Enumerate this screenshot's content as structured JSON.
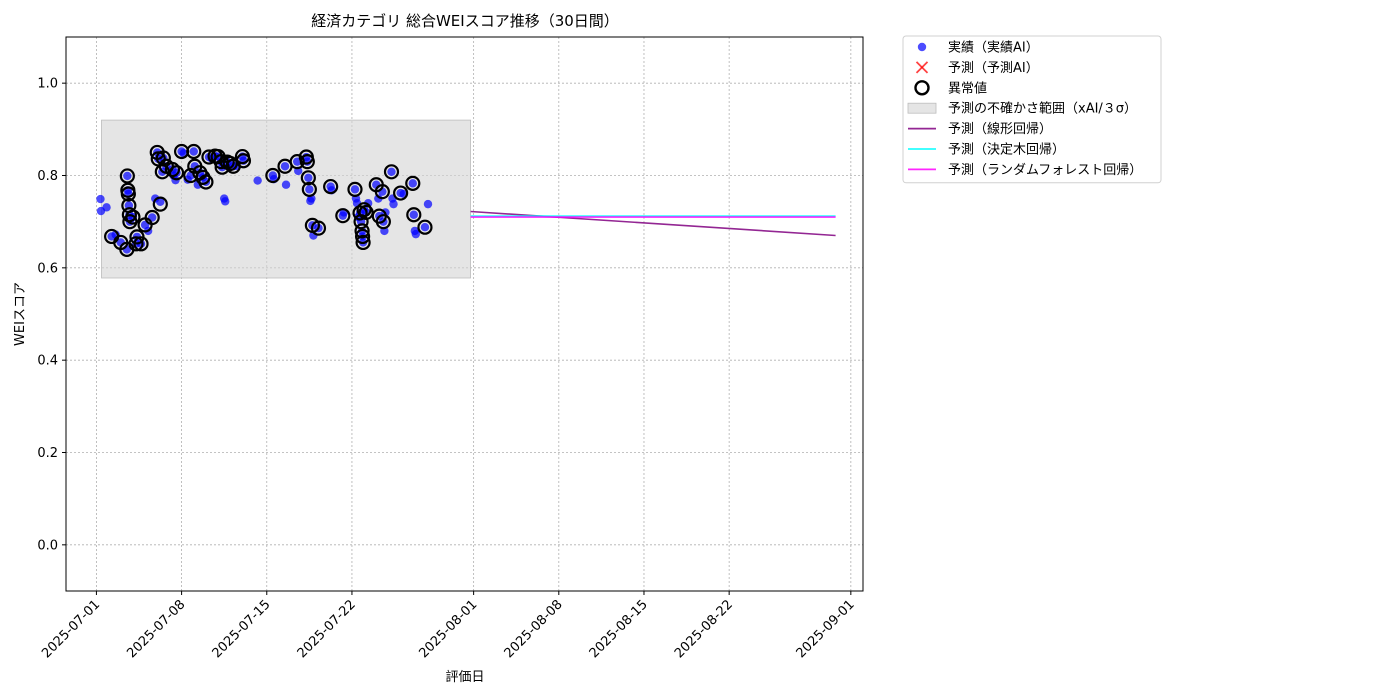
{
  "chart_data": {
    "type": "scatter",
    "title": "経済カテゴリ 総合WEIスコア推移（30日間）",
    "xlabel": "評価日",
    "ylabel": "WEIスコア",
    "xlim": [
      "2025-06-28T12:00",
      "2025-09-02"
    ],
    "ylim": [
      -0.1,
      1.1
    ],
    "x_ticks": [
      "2025-07-01",
      "2025-07-08",
      "2025-07-15",
      "2025-07-22",
      "2025-08-01",
      "2025-08-08",
      "2025-08-15",
      "2025-08-22",
      "2025-09-01"
    ],
    "y_ticks": [
      0.0,
      0.2,
      0.4,
      0.6,
      0.8,
      1.0
    ],
    "y_tick_labels": [
      "0.0",
      "0.2",
      "0.4",
      "0.6",
      "0.8",
      "1.0"
    ],
    "grid": true,
    "legend_position": "outside right, top",
    "colors": {
      "actual": "#0000ff",
      "predicted": "#ff0000",
      "anomaly": "#000000",
      "band": "#d3d3d3",
      "linear": "#800080",
      "tree": "#00ffff",
      "forest": "#ff00ff"
    },
    "legend": [
      {
        "label": "実績（実績AI）",
        "kind": "dot",
        "color": "#0000ff"
      },
      {
        "label": "予測（予測AI）",
        "kind": "cross",
        "color": "#ff0000"
      },
      {
        "label": "異常値",
        "kind": "ring",
        "color": "#000000"
      },
      {
        "label": "予測の不確かさ範囲（xAI/３σ）",
        "kind": "patch",
        "color": "#d3d3d3"
      },
      {
        "label": "予測（線形回帰）",
        "kind": "line",
        "color": "#800080"
      },
      {
        "label": "予測（決定木回帰）",
        "kind": "line",
        "color": "#00ffff"
      },
      {
        "label": "予測（ランダムフォレスト回帰）",
        "kind": "line",
        "color": "#ff00ff"
      }
    ],
    "uncertainty_band": {
      "x": [
        "2025-07-01T10:00",
        "2025-07-31T18:00"
      ],
      "y": [
        0.578,
        0.92
      ]
    },
    "series": [
      {
        "name": "実績（実績AI）",
        "points": [
          [
            "2025-07-01T08:00",
            0.749
          ],
          [
            "2025-07-01T09:00",
            0.723
          ],
          [
            "2025-07-01T20:00",
            0.731
          ],
          [
            "2025-07-02T06:00",
            0.668
          ],
          [
            "2025-07-02T14:00",
            0.672
          ],
          [
            "2025-07-03T00:00",
            0.655
          ],
          [
            "2025-07-03T12:00",
            0.64
          ],
          [
            "2025-07-03T13:00",
            0.799
          ],
          [
            "2025-07-03T14:00",
            0.768
          ],
          [
            "2025-07-03T15:00",
            0.76
          ],
          [
            "2025-07-03T16:00",
            0.735
          ],
          [
            "2025-07-03T17:00",
            0.715
          ],
          [
            "2025-07-03T18:00",
            0.7
          ],
          [
            "2025-07-04T00:00",
            0.71
          ],
          [
            "2025-07-04T06:00",
            0.652
          ],
          [
            "2025-07-04T08:00",
            0.667
          ],
          [
            "2025-07-04T16:00",
            0.652
          ],
          [
            "2025-07-05T00:00",
            0.693
          ],
          [
            "2025-07-05T06:00",
            0.68
          ],
          [
            "2025-07-05T14:00",
            0.709
          ],
          [
            "2025-07-05T20:00",
            0.75
          ],
          [
            "2025-07-06T00:00",
            0.85
          ],
          [
            "2025-07-06T02:00",
            0.836
          ],
          [
            "2025-07-06T06:00",
            0.743
          ],
          [
            "2025-07-06T10:00",
            0.808
          ],
          [
            "2025-07-06T12:00",
            0.838
          ],
          [
            "2025-07-06T18:00",
            0.82
          ],
          [
            "2025-07-07T06:00",
            0.813
          ],
          [
            "2025-07-07T08:00",
            0.8
          ],
          [
            "2025-07-07T12:00",
            0.79
          ],
          [
            "2025-07-07T14:00",
            0.806
          ],
          [
            "2025-07-08T00:00",
            0.852
          ],
          [
            "2025-07-08T04:00",
            0.848
          ],
          [
            "2025-07-08T12:00",
            0.791
          ],
          [
            "2025-07-08T18:00",
            0.8
          ],
          [
            "2025-07-09T00:00",
            0.852
          ],
          [
            "2025-07-09T02:00",
            0.82
          ],
          [
            "2025-07-09T08:00",
            0.78
          ],
          [
            "2025-07-09T12:00",
            0.806
          ],
          [
            "2025-07-09T18:00",
            0.796
          ],
          [
            "2025-07-10T00:00",
            0.786
          ],
          [
            "2025-07-10T06:00",
            0.84
          ],
          [
            "2025-07-10T12:00",
            0.836
          ],
          [
            "2025-07-10T18:00",
            0.842
          ],
          [
            "2025-07-11T00:00",
            0.841
          ],
          [
            "2025-07-11T06:00",
            0.83
          ],
          [
            "2025-07-11T08:00",
            0.818
          ],
          [
            "2025-07-11T12:00",
            0.75
          ],
          [
            "2025-07-11T14:00",
            0.744
          ],
          [
            "2025-07-11T18:00",
            0.829
          ],
          [
            "2025-07-12T00:00",
            0.826
          ],
          [
            "2025-07-12T06:00",
            0.82
          ],
          [
            "2025-07-12T12:00",
            0.821
          ],
          [
            "2025-07-13T00:00",
            0.841
          ],
          [
            "2025-07-13T02:00",
            0.832
          ],
          [
            "2025-07-14T06:00",
            0.789
          ],
          [
            "2025-07-15T12:00",
            0.8
          ],
          [
            "2025-07-15T14:00",
            0.792
          ],
          [
            "2025-07-16T12:00",
            0.82
          ],
          [
            "2025-07-16T14:00",
            0.78
          ],
          [
            "2025-07-17T12:00",
            0.83
          ],
          [
            "2025-07-17T14:00",
            0.81
          ],
          [
            "2025-07-18T06:00",
            0.84
          ],
          [
            "2025-07-18T08:00",
            0.83
          ],
          [
            "2025-07-18T10:00",
            0.795
          ],
          [
            "2025-07-18T12:00",
            0.77
          ],
          [
            "2025-07-18T14:00",
            0.745
          ],
          [
            "2025-07-18T16:00",
            0.75
          ],
          [
            "2025-07-18T18:00",
            0.692
          ],
          [
            "2025-07-18T20:00",
            0.67
          ],
          [
            "2025-07-19T06:00",
            0.686
          ],
          [
            "2025-07-20T06:00",
            0.776
          ],
          [
            "2025-07-20T08:00",
            0.768
          ],
          [
            "2025-07-21T06:00",
            0.713
          ],
          [
            "2025-07-21T08:00",
            0.72
          ],
          [
            "2025-07-22T06:00",
            0.77
          ],
          [
            "2025-07-22T08:00",
            0.75
          ],
          [
            "2025-07-22T10:00",
            0.74
          ],
          [
            "2025-07-22T12:00",
            0.71
          ],
          [
            "2025-07-22T16:00",
            0.719
          ],
          [
            "2025-07-22T18:00",
            0.7
          ],
          [
            "2025-07-22T20:00",
            0.68
          ],
          [
            "2025-07-22T21:00",
            0.668
          ],
          [
            "2025-07-22T22:00",
            0.655
          ],
          [
            "2025-07-23T00:00",
            0.726
          ],
          [
            "2025-07-23T04:00",
            0.72
          ],
          [
            "2025-07-23T08:00",
            0.74
          ],
          [
            "2025-07-24T00:00",
            0.78
          ],
          [
            "2025-07-24T04:00",
            0.75
          ],
          [
            "2025-07-24T06:00",
            0.712
          ],
          [
            "2025-07-24T12:00",
            0.765
          ],
          [
            "2025-07-24T14:00",
            0.7
          ],
          [
            "2025-07-24T16:00",
            0.68
          ],
          [
            "2025-07-24T18:00",
            0.72
          ],
          [
            "2025-07-25T06:00",
            0.808
          ],
          [
            "2025-07-25T08:00",
            0.75
          ],
          [
            "2025-07-25T10:00",
            0.738
          ],
          [
            "2025-07-26T00:00",
            0.762
          ],
          [
            "2025-07-26T06:00",
            0.76
          ],
          [
            "2025-07-27T00:00",
            0.783
          ],
          [
            "2025-07-27T02:00",
            0.715
          ],
          [
            "2025-07-27T04:00",
            0.68
          ],
          [
            "2025-07-27T06:00",
            0.673
          ],
          [
            "2025-07-28T00:00",
            0.688
          ],
          [
            "2025-07-28T06:00",
            0.738
          ]
        ]
      },
      {
        "name": "異常値",
        "points": [
          [
            "2025-07-02T06:00",
            0.668
          ],
          [
            "2025-07-03T00:00",
            0.655
          ],
          [
            "2025-07-03T12:00",
            0.64
          ],
          [
            "2025-07-03T13:00",
            0.799
          ],
          [
            "2025-07-03T14:00",
            0.768
          ],
          [
            "2025-07-03T15:00",
            0.76
          ],
          [
            "2025-07-03T16:00",
            0.735
          ],
          [
            "2025-07-03T17:00",
            0.715
          ],
          [
            "2025-07-03T18:00",
            0.7
          ],
          [
            "2025-07-04T00:00",
            0.71
          ],
          [
            "2025-07-04T06:00",
            0.652
          ],
          [
            "2025-07-04T08:00",
            0.667
          ],
          [
            "2025-07-04T16:00",
            0.652
          ],
          [
            "2025-07-05T00:00",
            0.693
          ],
          [
            "2025-07-05T14:00",
            0.709
          ],
          [
            "2025-07-06T00:00",
            0.85
          ],
          [
            "2025-07-06T02:00",
            0.836
          ],
          [
            "2025-07-06T06:00",
            0.738
          ],
          [
            "2025-07-06T10:00",
            0.808
          ],
          [
            "2025-07-06T12:00",
            0.838
          ],
          [
            "2025-07-06T18:00",
            0.82
          ],
          [
            "2025-07-07T06:00",
            0.813
          ],
          [
            "2025-07-07T14:00",
            0.806
          ],
          [
            "2025-07-08T00:00",
            0.852
          ],
          [
            "2025-07-08T18:00",
            0.8
          ],
          [
            "2025-07-09T00:00",
            0.852
          ],
          [
            "2025-07-09T02:00",
            0.82
          ],
          [
            "2025-07-09T12:00",
            0.806
          ],
          [
            "2025-07-09T18:00",
            0.796
          ],
          [
            "2025-07-10T00:00",
            0.786
          ],
          [
            "2025-07-10T06:00",
            0.84
          ],
          [
            "2025-07-10T18:00",
            0.842
          ],
          [
            "2025-07-11T00:00",
            0.841
          ],
          [
            "2025-07-11T06:00",
            0.83
          ],
          [
            "2025-07-11T08:00",
            0.818
          ],
          [
            "2025-07-11T18:00",
            0.829
          ],
          [
            "2025-07-12T00:00",
            0.826
          ],
          [
            "2025-07-12T06:00",
            0.82
          ],
          [
            "2025-07-13T00:00",
            0.841
          ],
          [
            "2025-07-13T02:00",
            0.832
          ],
          [
            "2025-07-15T12:00",
            0.8
          ],
          [
            "2025-07-16T12:00",
            0.82
          ],
          [
            "2025-07-17T12:00",
            0.83
          ],
          [
            "2025-07-18T06:00",
            0.84
          ],
          [
            "2025-07-18T08:00",
            0.83
          ],
          [
            "2025-07-18T10:00",
            0.795
          ],
          [
            "2025-07-18T12:00",
            0.77
          ],
          [
            "2025-07-18T18:00",
            0.692
          ],
          [
            "2025-07-19T06:00",
            0.686
          ],
          [
            "2025-07-20T06:00",
            0.776
          ],
          [
            "2025-07-21T06:00",
            0.713
          ],
          [
            "2025-07-22T06:00",
            0.77
          ],
          [
            "2025-07-22T16:00",
            0.719
          ],
          [
            "2025-07-22T18:00",
            0.7
          ],
          [
            "2025-07-22T20:00",
            0.68
          ],
          [
            "2025-07-22T21:00",
            0.668
          ],
          [
            "2025-07-22T22:00",
            0.655
          ],
          [
            "2025-07-23T00:00",
            0.726
          ],
          [
            "2025-07-23T04:00",
            0.72
          ],
          [
            "2025-07-24T00:00",
            0.78
          ],
          [
            "2025-07-24T06:00",
            0.712
          ],
          [
            "2025-07-24T12:00",
            0.765
          ],
          [
            "2025-07-24T14:00",
            0.7
          ],
          [
            "2025-07-25T06:00",
            0.808
          ],
          [
            "2025-07-26T00:00",
            0.762
          ],
          [
            "2025-07-27T00:00",
            0.783
          ],
          [
            "2025-07-27T02:00",
            0.715
          ],
          [
            "2025-07-28T00:00",
            0.688
          ]
        ]
      },
      {
        "name": "予測（線形回帰）",
        "points": [
          [
            "2025-07-31T18:00",
            0.722
          ],
          [
            "2025-08-30T18:00",
            0.67
          ]
        ]
      },
      {
        "name": "予測（決定木回帰）",
        "points": [
          [
            "2025-07-31T18:00",
            0.712
          ],
          [
            "2025-08-30T18:00",
            0.712
          ]
        ]
      },
      {
        "name": "予測（ランダムフォレスト回帰）",
        "points": [
          [
            "2025-07-31T18:00",
            0.71
          ],
          [
            "2025-08-30T18:00",
            0.71
          ]
        ]
      }
    ]
  }
}
